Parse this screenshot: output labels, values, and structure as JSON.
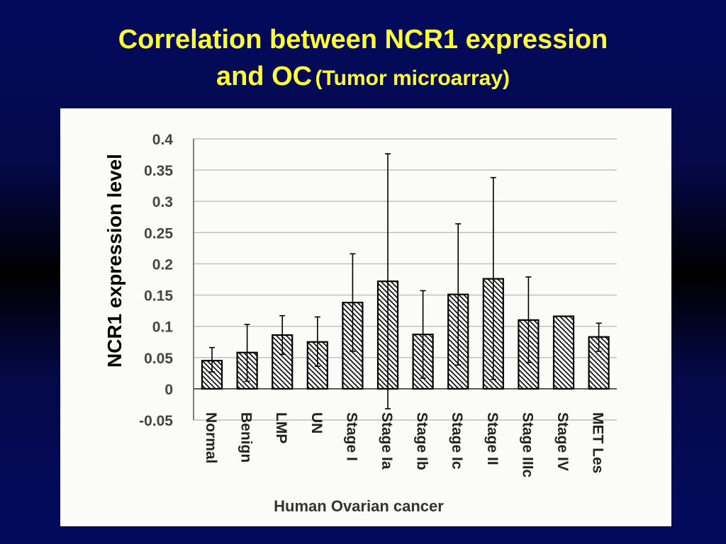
{
  "slide": {
    "title_line1": "Correlation between NCR1 expression",
    "title_line2_main": "and OC",
    "title_line2_sub": "(Tumor microarray)"
  },
  "colors": {
    "background": "#030a5e",
    "title": "#ffff33",
    "panel": "#fbfbf8",
    "bar_stroke": "#000000"
  },
  "chart_data": {
    "type": "bar",
    "title": "",
    "xlabel": "Human Ovarian cancer",
    "ylabel": "NCR1 expression level",
    "ylim": [
      -0.05,
      0.4
    ],
    "yticks": [
      "0.4",
      "0.35",
      "0.3",
      "0.25",
      "0.2",
      "0.15",
      "0.1",
      "0.05",
      "0",
      "-0.05"
    ],
    "ytick_values": [
      0.4,
      0.35,
      0.3,
      0.25,
      0.2,
      0.15,
      0.1,
      0.05,
      0,
      -0.05
    ],
    "grid": true,
    "bar_fill": "diagonal-hatch",
    "categories": [
      "Normal",
      "Benign",
      "LMP",
      "UN",
      "Stage I",
      "Stage Ia",
      "Stage Ib",
      "Stage Ic",
      "Stage II",
      "Stage IIIc",
      "Stage IV",
      "MET Les"
    ],
    "values": [
      0.045,
      0.058,
      0.086,
      0.075,
      0.138,
      0.172,
      0.087,
      0.151,
      0.176,
      0.11,
      0.116,
      0.083
    ],
    "error_low": [
      0.027,
      0.012,
      0.055,
      0.036,
      0.06,
      -0.032,
      0.017,
      0.038,
      0.015,
      0.042,
      0.116,
      0.06
    ],
    "error_high": [
      0.066,
      0.103,
      0.117,
      0.115,
      0.216,
      0.376,
      0.157,
      0.264,
      0.338,
      0.179,
      0.116,
      0.105
    ]
  }
}
